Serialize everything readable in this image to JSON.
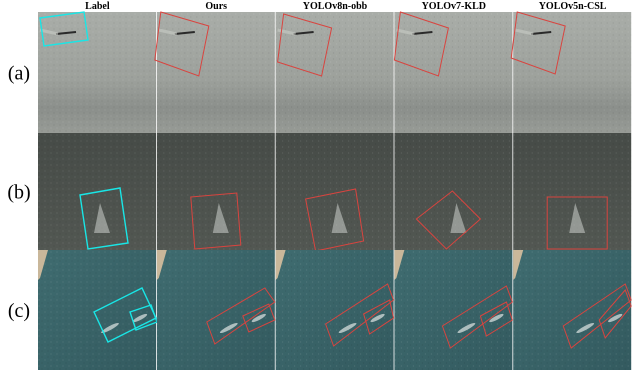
{
  "columns": [
    "Label",
    "Ours",
    "YOLOv8n-obb",
    "YOLOv7-KLD",
    "YOLOv5n-CSL"
  ],
  "rows": [
    "(a)",
    "(b)",
    "(c)"
  ]
}
